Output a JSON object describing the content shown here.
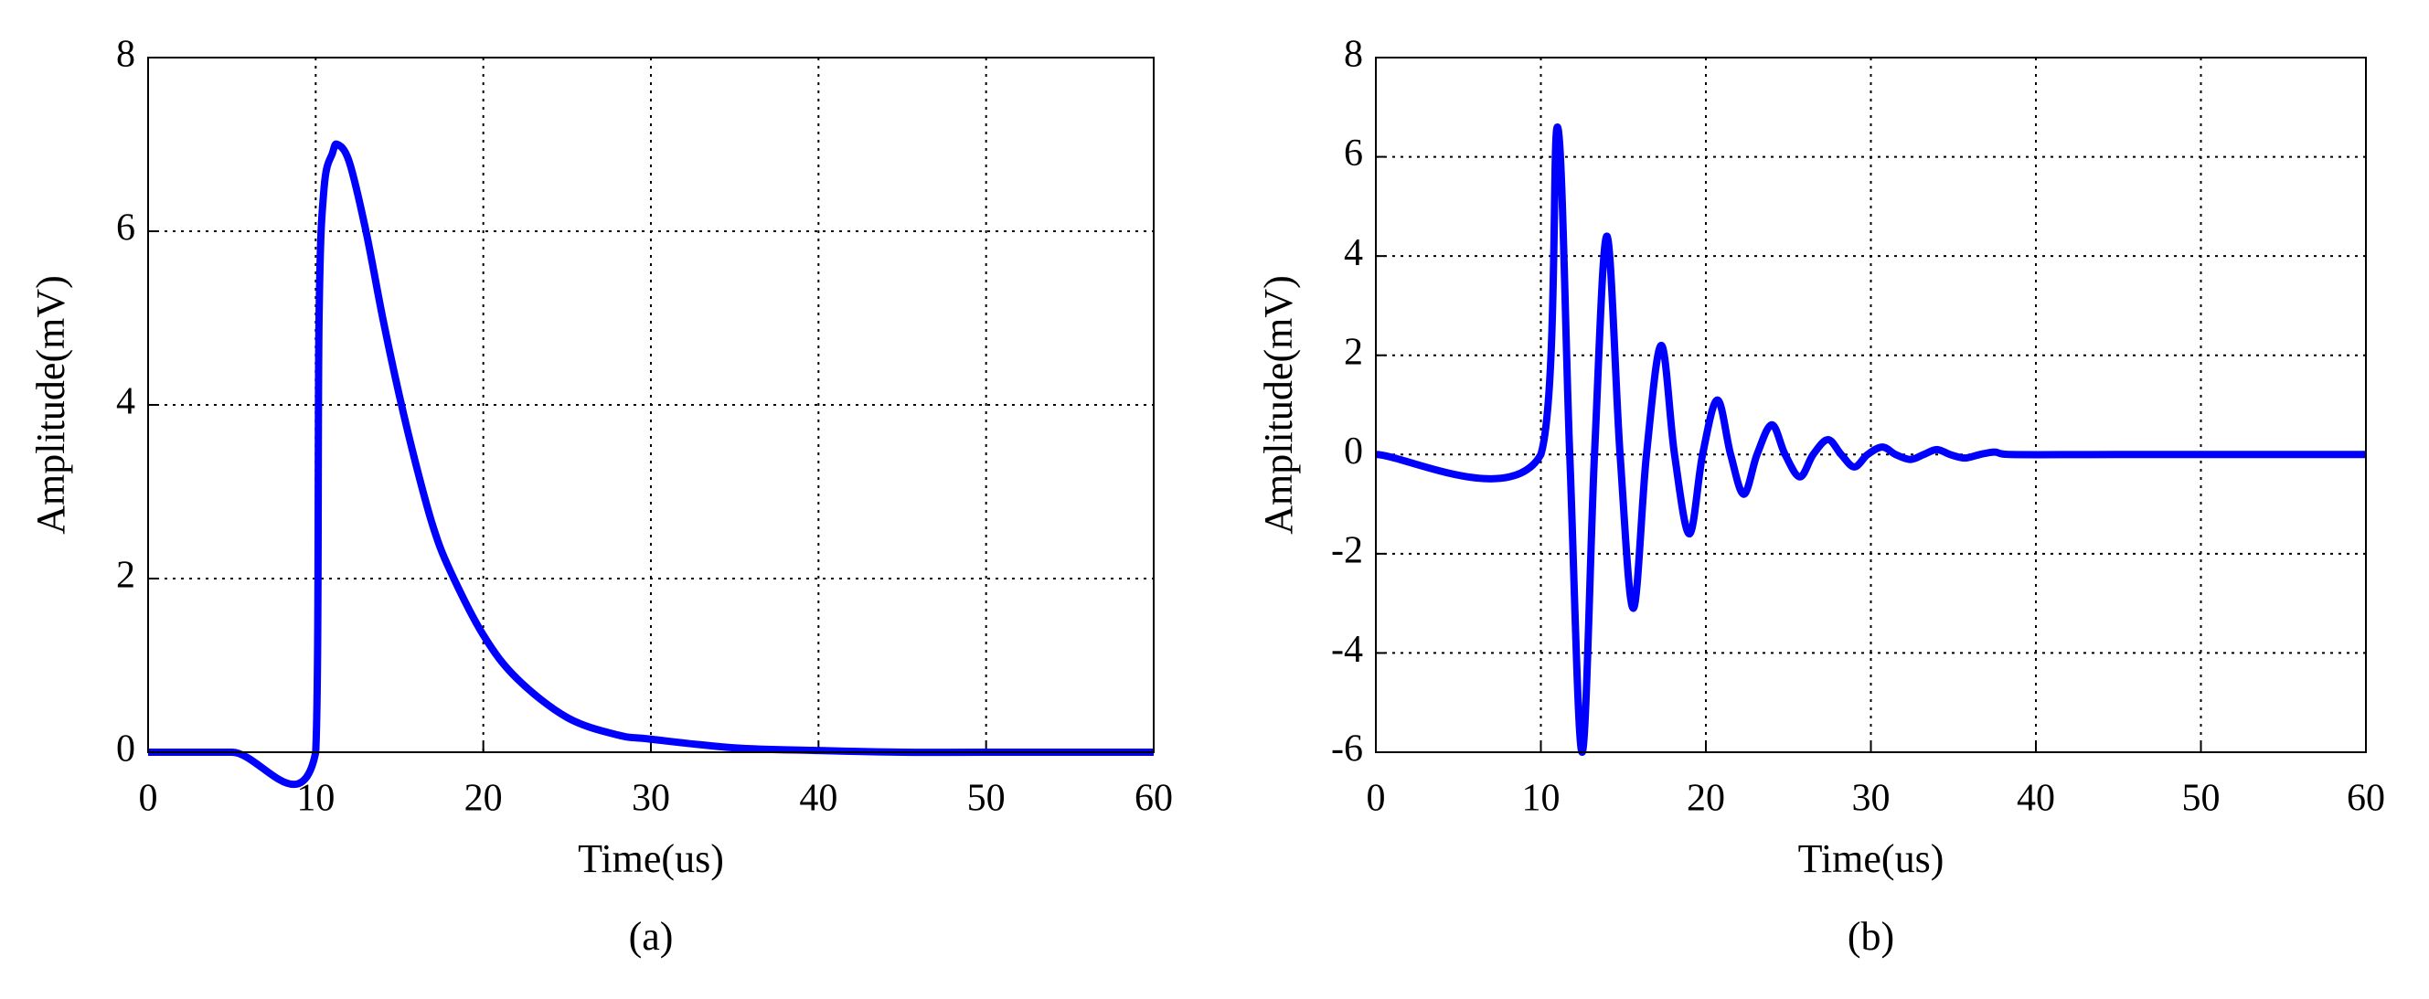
{
  "chart_data": [
    {
      "type": "line",
      "caption": "(a)",
      "xlabel": "Time(us)",
      "ylabel": "Amplitude(mV)",
      "x": [
        0,
        5,
        10,
        10.2,
        10.5,
        11,
        11.3,
        12,
        13,
        14,
        15,
        16,
        17,
        18,
        20,
        22,
        25,
        28,
        30,
        35,
        40,
        45,
        50,
        60
      ],
      "series": [
        {
          "color": "#0000ff",
          "values": [
            0,
            0,
            0,
            5,
            6.5,
            6.9,
            7.0,
            6.8,
            6.0,
            5.0,
            4.1,
            3.3,
            2.6,
            2.1,
            1.35,
            0.85,
            0.4,
            0.2,
            0.15,
            0.05,
            0.02,
            0,
            0,
            0
          ]
        }
      ],
      "xlim": [
        0,
        60
      ],
      "ylim": [
        0,
        8
      ],
      "xticks": [
        0,
        10,
        20,
        30,
        40,
        50,
        60
      ],
      "yticks": [
        0,
        2,
        4,
        6,
        8
      ],
      "grid": true
    },
    {
      "type": "line",
      "caption": "(b)",
      "xlabel": "Time(us)",
      "ylabel": "Amplitude(mV)",
      "x": [
        0,
        10,
        11,
        11.75,
        12.5,
        13.25,
        14,
        14.8,
        15.6,
        16.4,
        17.3,
        18.1,
        19,
        19.8,
        20.7,
        21.5,
        22.3,
        23.1,
        24,
        24.8,
        25.7,
        26.5,
        27.4,
        28.2,
        29,
        29.8,
        30.7,
        31.5,
        32.4,
        33.2,
        34,
        34.8,
        35.7,
        36.6,
        37.5,
        38.5,
        45,
        60
      ],
      "series": [
        {
          "color": "#0000ff",
          "values": [
            0,
            0,
            6.6,
            0,
            -6.0,
            0,
            4.4,
            0,
            -3.1,
            0,
            2.2,
            0,
            -1.6,
            0,
            1.1,
            0,
            -0.8,
            0,
            0.6,
            0,
            -0.45,
            0,
            0.3,
            0,
            -0.25,
            0,
            0.15,
            0,
            -0.1,
            0,
            0.1,
            0,
            -0.07,
            0,
            0.05,
            0,
            0,
            0
          ]
        }
      ],
      "xlim": [
        0,
        60
      ],
      "ylim": [
        -6,
        8
      ],
      "xticks": [
        0,
        10,
        20,
        30,
        40,
        50,
        60
      ],
      "yticks": [
        -6,
        -4,
        -2,
        0,
        2,
        4,
        6,
        8
      ],
      "grid": true
    }
  ]
}
